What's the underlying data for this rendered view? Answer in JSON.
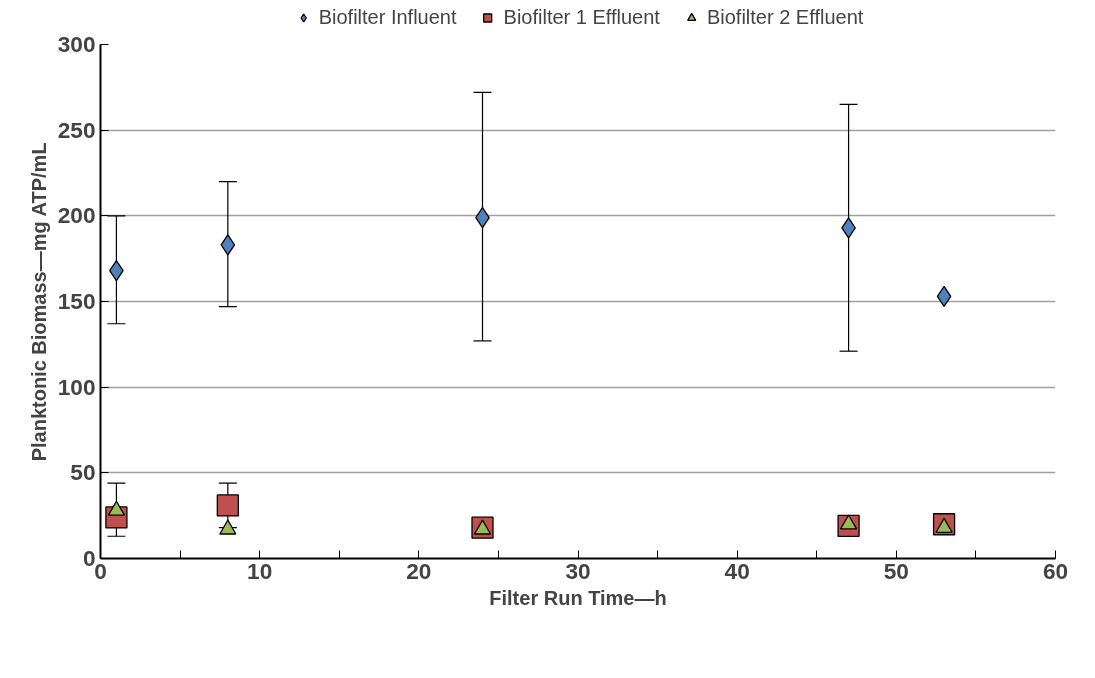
{
  "chart_data": {
    "type": "scatter",
    "xlabel": "Filter Run Time—h",
    "ylabel": "Planktonic Biomass—mg ATP/mL",
    "x": [
      1,
      8,
      24,
      47,
      53
    ],
    "series": [
      {
        "name": "Biofilter Influent",
        "color": "#4f81bd",
        "marker": "diamond",
        "values": [
          168,
          183,
          199,
          193,
          153
        ],
        "errors": [
          [
            137,
            200
          ],
          [
            147,
            220
          ],
          [
            127,
            272
          ],
          [
            121,
            265
          ],
          null
        ]
      },
      {
        "name": "Biofilter 1 Effluent",
        "color": "#c0504d",
        "marker": "square",
        "values": [
          24,
          31,
          18,
          19,
          20
        ],
        "errors": [
          [
            13,
            44
          ],
          [
            18,
            44
          ],
          null,
          null,
          null
        ]
      },
      {
        "name": "Biofilter 2 Effluent",
        "color": "#9bbb59",
        "marker": "triangle",
        "values": [
          28,
          17,
          17,
          20,
          18
        ]
      }
    ],
    "xlim": [
      0,
      60
    ],
    "ylim": [
      0,
      300
    ],
    "xticks": [
      0,
      {
        "value": 5,
        "label": null
      },
      10,
      {
        "value": 15,
        "label": null
      },
      20,
      {
        "value": 25,
        "label": null
      },
      30,
      {
        "value": 35,
        "label": null
      },
      40,
      {
        "value": 45,
        "label": null
      },
      50,
      {
        "value": 55,
        "label": null
      },
      60
    ],
    "yticks": [
      0,
      50,
      100,
      150,
      200,
      250,
      300
    ],
    "grid": "y",
    "legend": "top"
  }
}
